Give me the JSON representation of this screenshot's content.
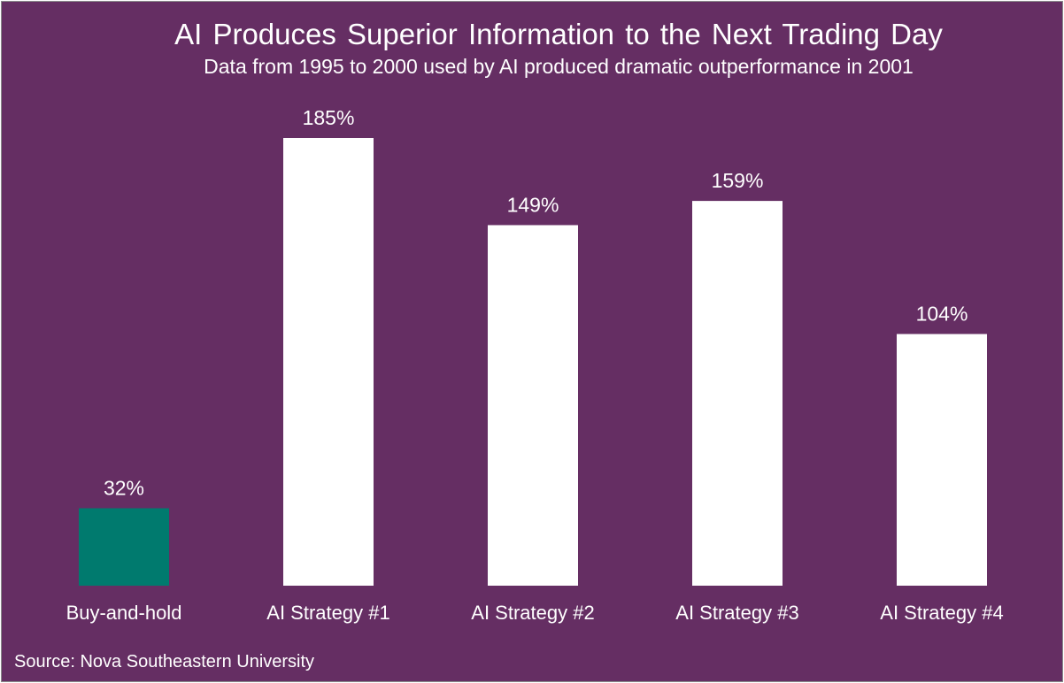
{
  "chart_data": {
    "type": "bar",
    "title": "AI Produces Superior Information to the Next Trading Day",
    "subtitle": "Data from 1995 to 2000 used by AI produced dramatic outperformance in 2001",
    "categories": [
      "Buy-and-hold",
      "AI Strategy #1",
      "AI Strategy #2",
      "AI Strategy #3",
      "AI Strategy #4"
    ],
    "values": [
      32,
      185,
      149,
      159,
      104
    ],
    "data_labels": [
      "32%",
      "185%",
      "149%",
      "159%",
      "104%"
    ],
    "bar_colors": [
      "#007a6e",
      "#ffffff",
      "#ffffff",
      "#ffffff",
      "#ffffff"
    ],
    "ylim": [
      0,
      185
    ],
    "xlabel": "",
    "ylabel": "",
    "grid": false,
    "legend": "none",
    "source": "Source: Nova Southeastern University"
  },
  "colors": {
    "background": "#652e63",
    "text": "#ffffff",
    "frame_border": "#8c8c8c"
  }
}
